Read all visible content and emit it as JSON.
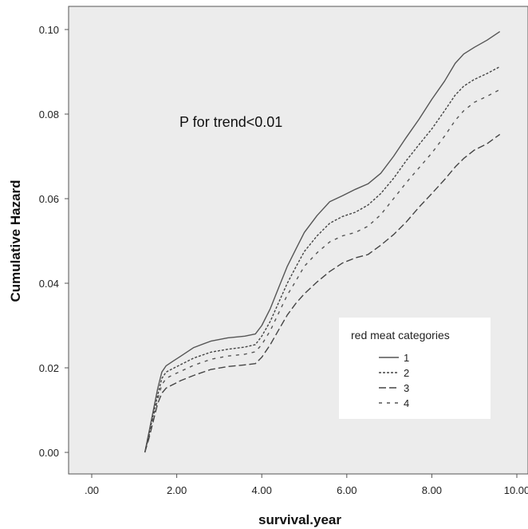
{
  "chart_data": {
    "type": "line",
    "title": "",
    "xlabel": "survival.year",
    "ylabel": "Cumulative Hazard",
    "xlim": [
      0,
      10
    ],
    "ylim": [
      0,
      0.1
    ],
    "x_ticks": [
      0,
      2,
      4,
      6,
      8,
      10
    ],
    "x_tick_labels": [
      ".00",
      "2.00",
      "4.00",
      "6.00",
      "8.00",
      "10.00"
    ],
    "y_ticks": [
      0,
      0.02,
      0.04,
      0.06,
      0.08,
      0.1
    ],
    "y_tick_labels": [
      "0.00",
      "0.02",
      "0.04",
      "0.06",
      "0.08",
      "0.10"
    ],
    "grid": false,
    "background": "#ececec",
    "annotation": "P for trend<0.01",
    "legend": {
      "title": "red meat categories",
      "position": "bottom-right"
    },
    "series": [
      {
        "name": "1",
        "dash": "solid",
        "color": "#555555",
        "x": [
          1.25,
          1.35,
          1.45,
          1.55,
          1.65,
          1.75,
          1.9,
          2.1,
          2.4,
          2.8,
          3.2,
          3.6,
          3.85,
          4.0,
          4.2,
          4.4,
          4.6,
          4.8,
          5.0,
          5.3,
          5.6,
          5.9,
          6.2,
          6.5,
          6.8,
          7.1,
          7.4,
          7.7,
          8.0,
          8.3,
          8.55,
          8.75,
          9.0,
          9.3,
          9.6
        ],
        "values": [
          0.0,
          0.005,
          0.01,
          0.015,
          0.019,
          0.0205,
          0.0215,
          0.0228,
          0.0248,
          0.0263,
          0.0271,
          0.0275,
          0.028,
          0.03,
          0.034,
          0.039,
          0.044,
          0.048,
          0.052,
          0.056,
          0.0593,
          0.0607,
          0.0622,
          0.0635,
          0.066,
          0.07,
          0.0745,
          0.0788,
          0.0835,
          0.0878,
          0.092,
          0.0942,
          0.0958,
          0.0975,
          0.0995
        ]
      },
      {
        "name": "2",
        "dash": "short-dash",
        "color": "#444444",
        "x": [
          1.25,
          1.35,
          1.45,
          1.55,
          1.65,
          1.75,
          1.9,
          2.1,
          2.4,
          2.8,
          3.2,
          3.6,
          3.85,
          4.0,
          4.2,
          4.4,
          4.6,
          4.8,
          5.0,
          5.3,
          5.6,
          5.9,
          6.2,
          6.5,
          6.8,
          7.1,
          7.4,
          7.7,
          8.0,
          8.3,
          8.55,
          8.75,
          9.0,
          9.3,
          9.6
        ],
        "values": [
          0.0,
          0.0045,
          0.009,
          0.0135,
          0.0175,
          0.019,
          0.0198,
          0.0208,
          0.0223,
          0.0237,
          0.0244,
          0.0249,
          0.0255,
          0.0275,
          0.031,
          0.0355,
          0.04,
          0.0438,
          0.0475,
          0.0512,
          0.0542,
          0.0558,
          0.0568,
          0.0585,
          0.0612,
          0.0648,
          0.069,
          0.0728,
          0.0765,
          0.0808,
          0.0845,
          0.0866,
          0.0882,
          0.0896,
          0.0912
        ]
      },
      {
        "name": "3",
        "dash": "long-dash",
        "color": "#444444",
        "x": [
          1.25,
          1.35,
          1.45,
          1.55,
          1.65,
          1.75,
          1.9,
          2.1,
          2.4,
          2.8,
          3.2,
          3.6,
          3.85,
          4.0,
          4.2,
          4.4,
          4.6,
          4.8,
          5.0,
          5.3,
          5.6,
          5.9,
          6.2,
          6.5,
          6.8,
          7.1,
          7.4,
          7.7,
          8.0,
          8.3,
          8.55,
          8.75,
          9.0,
          9.3,
          9.6
        ],
        "values": [
          0.0,
          0.0035,
          0.0075,
          0.0115,
          0.014,
          0.0152,
          0.016,
          0.017,
          0.0182,
          0.0196,
          0.0203,
          0.0207,
          0.021,
          0.0225,
          0.0255,
          0.029,
          0.0325,
          0.0352,
          0.0375,
          0.0403,
          0.0428,
          0.0448,
          0.046,
          0.0468,
          0.049,
          0.0515,
          0.0545,
          0.058,
          0.0612,
          0.0645,
          0.0675,
          0.0695,
          0.0715,
          0.073,
          0.0752
        ]
      },
      {
        "name": "4",
        "dash": "dot-dash",
        "color": "#555555",
        "x": [
          1.25,
          1.35,
          1.45,
          1.55,
          1.65,
          1.75,
          1.9,
          2.1,
          2.4,
          2.8,
          3.2,
          3.6,
          3.85,
          4.0,
          4.2,
          4.4,
          4.6,
          4.8,
          5.0,
          5.3,
          5.6,
          5.9,
          6.2,
          6.5,
          6.8,
          7.1,
          7.4,
          7.7,
          8.0,
          8.3,
          8.55,
          8.75,
          9.0,
          9.3,
          9.6
        ],
        "values": [
          0.0,
          0.004,
          0.0085,
          0.0125,
          0.016,
          0.0175,
          0.0183,
          0.0192,
          0.0206,
          0.022,
          0.0228,
          0.0232,
          0.0238,
          0.0255,
          0.0288,
          0.033,
          0.0372,
          0.0405,
          0.044,
          0.0472,
          0.0498,
          0.0512,
          0.052,
          0.0535,
          0.0562,
          0.06,
          0.0638,
          0.0673,
          0.0708,
          0.0748,
          0.0785,
          0.0808,
          0.0828,
          0.0842,
          0.0858
        ]
      }
    ]
  }
}
